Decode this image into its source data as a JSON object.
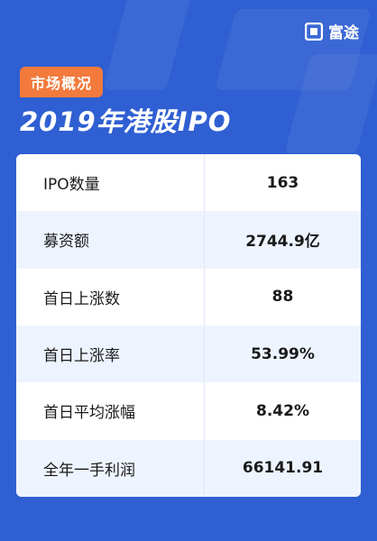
{
  "brand": {
    "name": "富途",
    "icon": "futu-logo-icon"
  },
  "header": {
    "tag": "市场概况",
    "title": "2019年港股IPO"
  },
  "table": {
    "rows": [
      {
        "label": "IPO数量",
        "value": "163"
      },
      {
        "label": "募资额",
        "value": "2744.9亿"
      },
      {
        "label": "首日上涨数",
        "value": "88"
      },
      {
        "label": "首日上涨率",
        "value": "53.99%"
      },
      {
        "label": "首日平均涨幅",
        "value": "8.42%"
      },
      {
        "label": "全年一手利润",
        "value": "66141.91"
      }
    ]
  },
  "colors": {
    "background": "#2f5fd2",
    "tag": "#f27a3d",
    "alt_row": "#eef4ff"
  }
}
